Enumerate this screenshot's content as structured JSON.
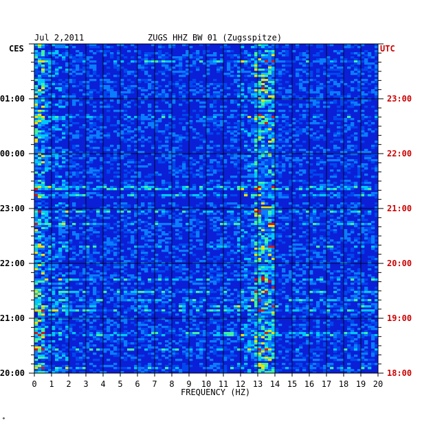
{
  "header": {
    "date": "Jul 2,2011",
    "station": "ZUGS HHZ BW 01 (Zugsspitze)"
  },
  "labels": {
    "left_zone": "CES",
    "right_zone": "UTC",
    "x_axis": "FREQUENCY (HZ)",
    "corner_mark": "*"
  },
  "colors": {
    "background_spectrum": "#0b1fd6",
    "left_time_labels": "#000000",
    "right_time_labels": "#cc0000",
    "grid": "#000000"
  },
  "chart_data": {
    "type": "heatmap",
    "title": "ZUGS HHZ BW 01 (Zugsspitze)",
    "xlabel": "FREQUENCY (HZ)",
    "xlim": [
      0,
      20
    ],
    "x_ticks": [
      "0",
      "1",
      "2",
      "3",
      "4",
      "5",
      "6",
      "7",
      "8",
      "9",
      "10",
      "11",
      "12",
      "13",
      "14",
      "15",
      "16",
      "17",
      "18",
      "19",
      "20"
    ],
    "y_ticks_left": [
      {
        "label": "01:00",
        "hour": 1
      },
      {
        "label": "00:00",
        "hour": 2
      },
      {
        "label": "23:00",
        "hour": 3
      },
      {
        "label": "22:00",
        "hour": 4
      },
      {
        "label": "21:00",
        "hour": 5
      },
      {
        "label": "20:00",
        "hour": 6
      }
    ],
    "y_ticks_right": [
      {
        "label": "23:00",
        "hour": 1
      },
      {
        "label": "22:00",
        "hour": 2
      },
      {
        "label": "21:00",
        "hour": 3
      },
      {
        "label": "20:00",
        "hour": 4
      },
      {
        "label": "19:00",
        "hour": 5
      },
      {
        "label": "18:00",
        "hour": 6
      }
    ],
    "hours_span": 6,
    "dominant_band_hz": [
      12.8,
      13.9
    ],
    "strong_low_freq_band_hz": [
      0,
      0.6
    ],
    "notes_colormap": "blue low energy, cyan/yellow medium, red high"
  }
}
